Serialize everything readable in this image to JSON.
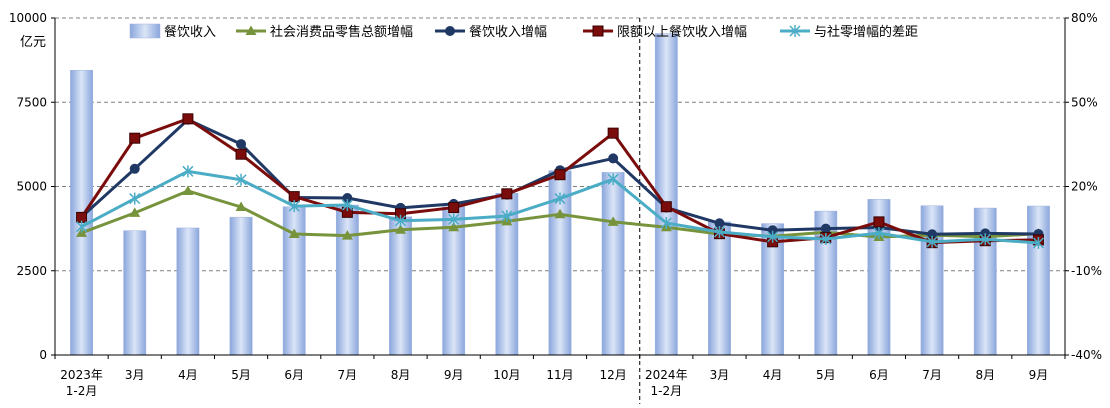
{
  "chart_data": {
    "type": "bar+line",
    "ylabel_left": "亿元",
    "categories": [
      [
        "2023年",
        "1-2月"
      ],
      [
        "3月"
      ],
      [
        "4月"
      ],
      [
        "5月"
      ],
      [
        "6月"
      ],
      [
        "7月"
      ],
      [
        "8月"
      ],
      [
        "9月"
      ],
      [
        "10月"
      ],
      [
        "11月"
      ],
      [
        "12月"
      ],
      [
        "2024年",
        "1-2月"
      ],
      [
        "3月"
      ],
      [
        "4月"
      ],
      [
        "5月"
      ],
      [
        "6月"
      ],
      [
        "7月"
      ],
      [
        "8月"
      ],
      [
        "9月"
      ]
    ],
    "y_left": {
      "min": 0,
      "max": 10000,
      "ticks": [
        0,
        2500,
        5000,
        7500,
        10000
      ],
      "tick_labels": [
        "0",
        "2500",
        "5000",
        "7500",
        "10000"
      ]
    },
    "y_right": {
      "min": -40,
      "max": 80,
      "ticks": [
        -40,
        -10,
        20,
        50,
        80
      ],
      "tick_labels": [
        "-40%",
        "-10%",
        "20%",
        "50%",
        "80%"
      ]
    },
    "grid": "dashed horizontal at left-axis ticks",
    "legend_position": "top",
    "divider_after_category": 10,
    "series": [
      {
        "name": "餐饮收入",
        "kind": "bar",
        "axis": "left",
        "color": "#a9bee6",
        "values": [
          8450,
          3690,
          3770,
          4090,
          4400,
          4450,
          4100,
          4400,
          4800,
          5470,
          5420,
          9540,
          3950,
          3900,
          4270,
          4620,
          4430,
          4360,
          4420
        ]
      },
      {
        "name": "社会消费品零售总额增幅",
        "kind": "line",
        "axis": "right",
        "color": "#77933c",
        "marker": "triangle",
        "values": [
          3.5,
          10.6,
          18.4,
          12.7,
          3.1,
          2.5,
          4.6,
          5.5,
          7.6,
          10.1,
          7.4,
          5.5,
          3.1,
          2.3,
          3.7,
          2.0,
          2.7,
          2.1,
          3.2
        ]
      },
      {
        "name": "餐饮收入增幅",
        "kind": "line",
        "axis": "right",
        "color": "#1f3864",
        "marker": "circle",
        "values": [
          9.2,
          26.3,
          43.8,
          35.1,
          16.1,
          15.9,
          12.4,
          13.8,
          17.1,
          25.8,
          30.0,
          12.5,
          6.9,
          4.4,
          5.0,
          5.4,
          3.0,
          3.3,
          3.1
        ]
      },
      {
        "name": "限额以上餐饮收入增幅",
        "kind": "line",
        "axis": "right",
        "color": "#7b0c0c",
        "marker": "square",
        "values": [
          9.0,
          37.2,
          44.1,
          31.5,
          16.4,
          10.8,
          10.3,
          12.5,
          17.4,
          24.2,
          39.0,
          12.8,
          3.2,
          0.3,
          1.8,
          7.4,
          0.0,
          0.7,
          1.0
        ]
      },
      {
        "name": "与社零增幅的差距",
        "kind": "line",
        "axis": "right",
        "color": "#4bacc6",
        "marker": "star",
        "values": [
          5.7,
          15.7,
          25.4,
          22.4,
          13.0,
          13.4,
          7.8,
          8.3,
          9.5,
          15.7,
          22.6,
          7.0,
          3.8,
          2.1,
          1.3,
          3.4,
          0.3,
          1.2,
          -0.1
        ]
      }
    ]
  }
}
